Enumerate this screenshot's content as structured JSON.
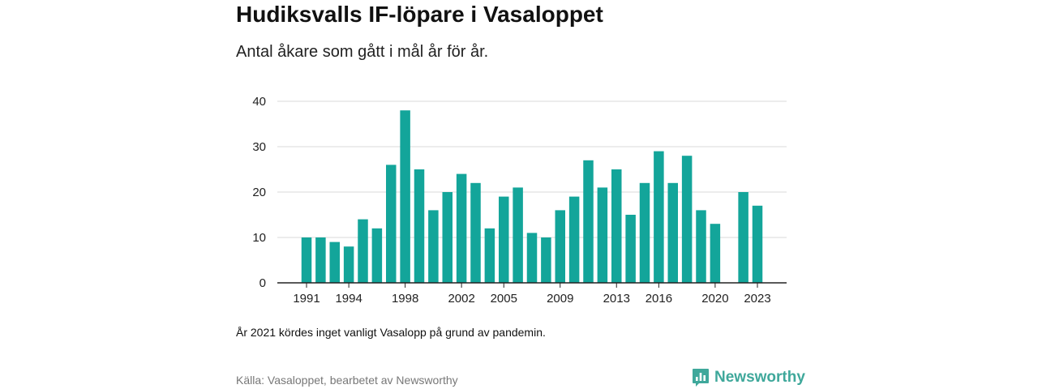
{
  "title": "Hudiksvalls IF-löpare i Vasaloppet",
  "subtitle": "Antal åkare som gått i mål år för år.",
  "note": "År 2021 kördes inget vanligt Vasalopp på grund av pandemin.",
  "source": "Källa: Vasaloppet, bearbetet av Newsworthy",
  "logo": {
    "text": "Newsworthy",
    "icon": "newsworthy-logo-icon",
    "color": "#3fa89b"
  },
  "colors": {
    "bar": "#13a59a",
    "grid": "#d9d9d9",
    "axis": "#222222"
  },
  "chart_data": {
    "type": "bar",
    "x": [
      1991,
      1992,
      1993,
      1994,
      1995,
      1996,
      1997,
      1998,
      1999,
      2000,
      2001,
      2002,
      2003,
      2004,
      2005,
      2006,
      2007,
      2008,
      2009,
      2010,
      2011,
      2012,
      2013,
      2014,
      2015,
      2016,
      2017,
      2018,
      2019,
      2020,
      2021,
      2022,
      2023
    ],
    "values": [
      10,
      10,
      9,
      8,
      14,
      12,
      26,
      38,
      25,
      16,
      20,
      24,
      22,
      12,
      19,
      21,
      11,
      10,
      16,
      19,
      27,
      21,
      25,
      15,
      22,
      29,
      22,
      28,
      16,
      13,
      null,
      20,
      17
    ],
    "x_tick_labels": [
      "1991",
      "1994",
      "1998",
      "2002",
      "2005",
      "2009",
      "2013",
      "2016",
      "2020",
      "2023"
    ],
    "y_ticks": [
      0,
      10,
      20,
      30,
      40
    ],
    "ylim": [
      0,
      40
    ],
    "xlabel": "",
    "ylabel": "",
    "grid": true
  }
}
